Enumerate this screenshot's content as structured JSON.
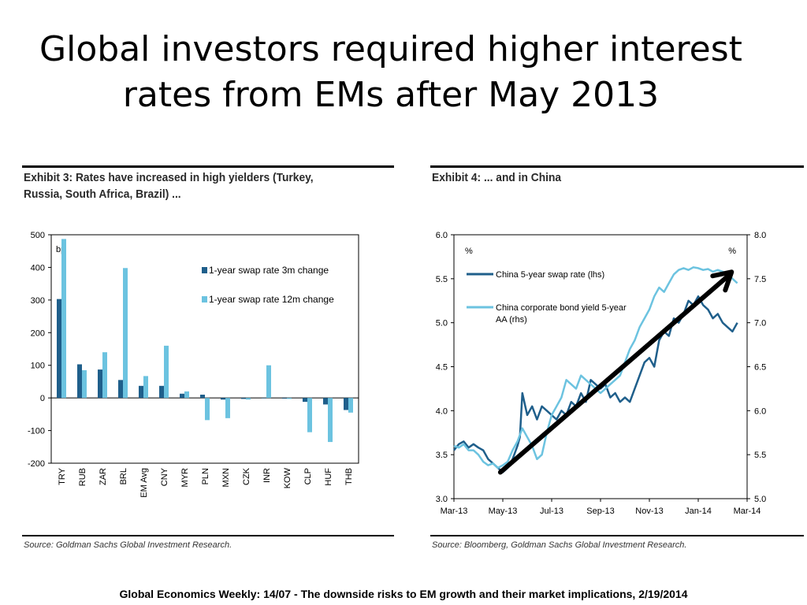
{
  "slide": {
    "title_line1": "Global investors required higher interest",
    "title_line2": "rates from EMs after May 2013",
    "footer": "Global Economics Weekly: 14/07 - The downside risks to EM growth and their market implications, 2/19/2014"
  },
  "exhibit3": {
    "title_line1": "Exhibit 3: Rates have increased in high yielders (Turkey,",
    "title_line2": "Russia, South Africa, Brazil) ...",
    "source": "Source: Goldman Sachs Global Investment Research."
  },
  "exhibit4": {
    "title": "Exhibit 4: ... and in China",
    "source": "Source: Bloomberg, Goldman Sachs Global Investment Research."
  },
  "colors": {
    "dark_blue": "#1f5f8b",
    "light_blue": "#6cc3e0",
    "arrow": "#000000"
  },
  "chart_data": [
    {
      "type": "bar",
      "unit_label": "bp",
      "categories": [
        "TRY",
        "RUB",
        "ZAR",
        "BRL",
        "EM Avg",
        "CNY",
        "MYR",
        "PLN",
        "MXN",
        "CZK",
        "INR",
        "KOW",
        "CLP",
        "HUF",
        "THB"
      ],
      "series": [
        {
          "name": "1-year swap rate 3m change",
          "color": "#1f5f8b",
          "values": [
            303,
            103,
            87,
            55,
            37,
            37,
            13,
            10,
            -5,
            -3,
            0,
            -2,
            -12,
            -20,
            -37
          ]
        },
        {
          "name": "1-year swap rate 12m change",
          "color": "#6cc3e0",
          "values": [
            487,
            85,
            140,
            398,
            67,
            160,
            20,
            -68,
            -62,
            -5,
            100,
            -3,
            -105,
            -135,
            -45
          ]
        }
      ],
      "ylim": [
        -200,
        500
      ],
      "yticks": [
        -200,
        -100,
        0,
        100,
        200,
        300,
        400,
        500
      ],
      "legend_placement": "top-right"
    },
    {
      "type": "line",
      "lhs_unit": "%",
      "rhs_unit": "%",
      "x_ticks": [
        "Mar-13",
        "May-13",
        "Jul-13",
        "Sep-13",
        "Nov-13",
        "Jan-14",
        "Mar-14"
      ],
      "ylim_lhs": [
        3.0,
        6.0
      ],
      "yticks_lhs": [
        "3.0",
        "3.5",
        "4.0",
        "4.5",
        "5.0",
        "5.5",
        "6.0"
      ],
      "ylim_rhs": [
        5.0,
        8.0
      ],
      "yticks_rhs": [
        "5.0",
        "5.5",
        "6.0",
        "6.5",
        "7.0",
        "7.5",
        "8.0"
      ],
      "legend_placement": "top-left",
      "series": [
        {
          "name": "China 5-year swap rate (lhs)",
          "axis": "lhs",
          "color": "#1f5f8b",
          "x": [
            0,
            0.2,
            0.4,
            0.6,
            0.8,
            1.0,
            1.2,
            1.4,
            1.6,
            1.8,
            2.0,
            2.2,
            2.4,
            2.6,
            2.7,
            2.8,
            3.0,
            3.2,
            3.4,
            3.6,
            3.8,
            4.0,
            4.2,
            4.4,
            4.6,
            4.8,
            5.0,
            5.2,
            5.4,
            5.6,
            5.8,
            6.0,
            6.2,
            6.4,
            6.6,
            6.8,
            7.0,
            7.2,
            7.4,
            7.6,
            7.8,
            8.0,
            8.2,
            8.4,
            8.6,
            8.8,
            9.0,
            9.2,
            9.4,
            9.6,
            9.8,
            10.0,
            10.2,
            10.4,
            10.6,
            10.8,
            11.0,
            11.2,
            11.4,
            11.6
          ],
          "values": [
            3.55,
            3.62,
            3.65,
            3.58,
            3.62,
            3.58,
            3.55,
            3.45,
            3.4,
            3.35,
            3.3,
            3.35,
            3.45,
            3.6,
            3.7,
            4.2,
            3.95,
            4.05,
            3.9,
            4.05,
            4.0,
            3.95,
            3.9,
            4.0,
            3.95,
            4.1,
            4.05,
            4.2,
            4.1,
            4.35,
            4.3,
            4.25,
            4.3,
            4.15,
            4.2,
            4.1,
            4.15,
            4.1,
            4.25,
            4.4,
            4.55,
            4.6,
            4.5,
            4.8,
            4.9,
            4.85,
            5.05,
            5.0,
            5.1,
            5.25,
            5.2,
            5.3,
            5.2,
            5.15,
            5.05,
            5.1,
            5.0,
            4.95,
            4.9,
            5.0
          ]
        },
        {
          "name": "China corporate bond yield 5-year AA (rhs)",
          "axis": "rhs",
          "color": "#6cc3e0",
          "x": [
            0,
            0.2,
            0.4,
            0.6,
            0.8,
            1.0,
            1.2,
            1.4,
            1.6,
            1.8,
            2.0,
            2.2,
            2.4,
            2.6,
            2.8,
            3.0,
            3.2,
            3.4,
            3.6,
            3.8,
            4.0,
            4.2,
            4.4,
            4.6,
            4.8,
            5.0,
            5.2,
            5.4,
            5.6,
            5.8,
            6.0,
            6.2,
            6.4,
            6.6,
            6.8,
            7.0,
            7.2,
            7.4,
            7.6,
            7.8,
            8.0,
            8.2,
            8.4,
            8.6,
            8.8,
            9.0,
            9.2,
            9.4,
            9.6,
            9.8,
            10.0,
            10.2,
            10.4,
            10.6,
            10.8,
            11.0,
            11.2,
            11.4,
            11.6
          ],
          "values": [
            5.6,
            5.58,
            5.62,
            5.55,
            5.55,
            5.5,
            5.42,
            5.38,
            5.4,
            5.35,
            5.38,
            5.42,
            5.55,
            5.65,
            5.8,
            5.7,
            5.6,
            5.45,
            5.5,
            5.75,
            5.95,
            6.05,
            6.15,
            6.35,
            6.3,
            6.25,
            6.4,
            6.35,
            6.3,
            6.25,
            6.2,
            6.25,
            6.3,
            6.35,
            6.4,
            6.55,
            6.7,
            6.8,
            6.95,
            7.05,
            7.15,
            7.3,
            7.4,
            7.35,
            7.45,
            7.55,
            7.6,
            7.62,
            7.6,
            7.63,
            7.62,
            7.6,
            7.61,
            7.58,
            7.6,
            7.58,
            7.55,
            7.5,
            7.45
          ]
        }
      ]
    }
  ]
}
